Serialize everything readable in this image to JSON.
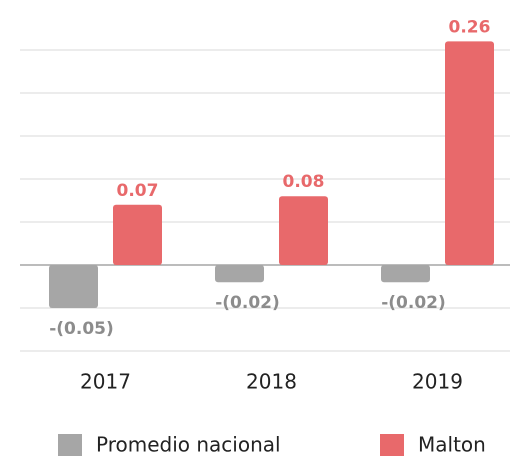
{
  "chart_data": {
    "type": "bar",
    "categories": [
      "2017",
      "2018",
      "2019"
    ],
    "series": [
      {
        "name": "Promedio nacional",
        "color": "#a6a6a6",
        "values": [
          -0.05,
          -0.02,
          -0.02
        ],
        "value_labels": [
          "-(0.05)",
          "-(0.02)",
          "-(0.02)"
        ],
        "label_color": "#8c8c8c"
      },
      {
        "name": "Malton",
        "color": "#e8696b",
        "values": [
          0.07,
          0.08,
          0.26
        ],
        "value_labels": [
          "0.07",
          "0.08",
          "0.26"
        ],
        "label_color": "#e8696b"
      }
    ],
    "ylim": [
      -0.1,
      0.25
    ],
    "yticks": [
      -0.1,
      -0.05,
      0,
      0.05,
      0.1,
      0.15,
      0.2,
      0.25
    ],
    "grid": true,
    "legend": "bottom"
  }
}
